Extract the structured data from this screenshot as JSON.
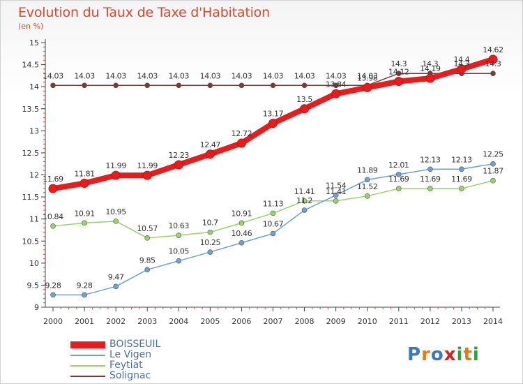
{
  "title": "Evolution du Taux de Taxe d'Habitation",
  "subtitle": "(en %)",
  "logo": {
    "text": "Proxiti",
    "letters": [
      "P",
      "r",
      "o",
      "x",
      "i",
      "t",
      "i"
    ],
    "colors": [
      "#3a78c3",
      "#e07b1a",
      "#3a78c3",
      "#d62020",
      "#2ea043",
      "#e07b1a",
      "#2ea043"
    ]
  },
  "chart_data": {
    "type": "line",
    "x": [
      2000,
      2001,
      2002,
      2003,
      2004,
      2005,
      2006,
      2007,
      2008,
      2009,
      2010,
      2011,
      2012,
      2013,
      2014
    ],
    "ylim": [
      9,
      15
    ],
    "yticks": [
      9,
      9.5,
      10,
      10.5,
      11,
      11.5,
      12,
      12.5,
      13,
      13.5,
      14,
      14.5,
      15
    ],
    "ytick_labels": [
      "9",
      "9.5",
      "10",
      "10.5",
      "11",
      "11.5",
      "12",
      "12.5",
      "13",
      "13.5",
      "14",
      "14.5",
      "15"
    ],
    "legend_position": "bottom-left",
    "grid": false,
    "series": [
      {
        "name": "BOISSEUIL",
        "color": "#e81c1c",
        "width": 8,
        "marker": 6,
        "values": [
          11.69,
          11.81,
          11.99,
          11.99,
          12.23,
          12.47,
          12.72,
          13.17,
          13.5,
          13.84,
          13.98,
          14.12,
          14.19,
          14.4,
          14.62
        ],
        "labels": [
          "11.69",
          "11.81",
          "11.99",
          "11.99",
          "12.23",
          "12.47",
          "12.72",
          "13.17",
          "13.5",
          "13.84",
          "13.98",
          "14.12",
          "14.19",
          "14.4",
          "14.62"
        ]
      },
      {
        "name": "Le Vigen",
        "color": "#6fa0cf",
        "width": 1.5,
        "marker": 3.5,
        "values": [
          9.28,
          9.28,
          9.47,
          9.85,
          10.05,
          10.25,
          10.46,
          10.67,
          11.2,
          11.54,
          11.89,
          12.01,
          12.13,
          12.13,
          12.25
        ],
        "labels": [
          "9.28",
          "9.28",
          "9.47",
          "9.85",
          "10.05",
          "10.25",
          "10.46",
          "10.67",
          "11.2",
          "11.54",
          "11.89",
          "12.01",
          "12.13",
          "12.13",
          "12.25"
        ]
      },
      {
        "name": "Feytiat",
        "color": "#9ad26a",
        "width": 1.5,
        "marker": 3.5,
        "values": [
          10.84,
          10.91,
          10.95,
          10.57,
          10.63,
          10.7,
          10.91,
          11.13,
          11.41,
          11.41,
          11.52,
          11.69,
          11.69,
          11.69,
          11.87
        ],
        "labels": [
          "10.84",
          "10.91",
          "10.95",
          "10.57",
          "10.63",
          "10.7",
          "10.91",
          "11.13",
          "11.41",
          "11.41",
          "11.52",
          "11.69",
          "11.69",
          "11.69",
          "11.87"
        ]
      },
      {
        "name": "Solignac",
        "color": "#7a3a3a",
        "width": 1.5,
        "marker": 3.5,
        "values": [
          14.03,
          14.03,
          14.03,
          14.03,
          14.03,
          14.03,
          14.03,
          14.03,
          14.03,
          14.03,
          14.03,
          14.3,
          14.3,
          14.3,
          14.3
        ],
        "labels": [
          "14.03",
          "14.03",
          "14.03",
          "14.03",
          "14.03",
          "14.03",
          "14.03",
          "14.03",
          "14.03",
          "14.03",
          "14.03",
          "14.3",
          "14.3",
          "14.3",
          "14.3"
        ]
      }
    ]
  }
}
